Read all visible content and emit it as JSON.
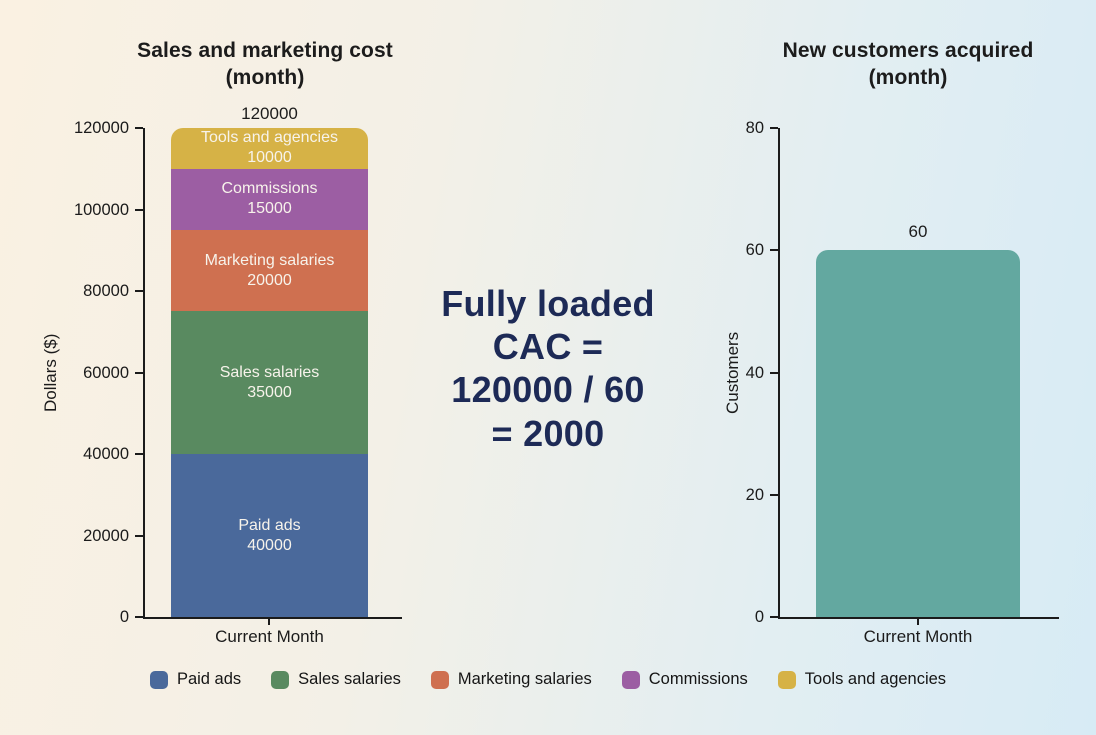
{
  "page": {
    "background_left_color": "#faf1e2",
    "background_right_color": "#d7ebf5"
  },
  "center_text": {
    "text": "Fully loaded\nCAC =\n120000 / 60\n= 2000",
    "color": "#1d2a56"
  },
  "chart_data": [
    {
      "type": "bar",
      "stacked": true,
      "title": "Sales and marketing cost\n(month)",
      "categories": [
        "Current Month"
      ],
      "series": [
        {
          "name": "Paid ads",
          "values": [
            40000
          ],
          "color": "#4a699b"
        },
        {
          "name": "Sales salaries",
          "values": [
            35000
          ],
          "color": "#598a60"
        },
        {
          "name": "Marketing salaries",
          "values": [
            20000
          ],
          "color": "#cf7050"
        },
        {
          "name": "Commissions",
          "values": [
            15000
          ],
          "color": "#9c5ea3"
        },
        {
          "name": "Tools and agencies",
          "values": [
            10000
          ],
          "color": "#d6b246"
        }
      ],
      "segment_labels": true,
      "total_label": "120000",
      "xlabel": "Current Month",
      "ylabel": "Dollars ($)",
      "ylim": [
        0,
        120000
      ],
      "yticks": [
        0,
        20000,
        40000,
        60000,
        80000,
        100000,
        120000
      ],
      "grid": false
    },
    {
      "type": "bar",
      "stacked": false,
      "title": "New customers acquired\n(month)",
      "categories": [
        "Current Month"
      ],
      "series": [
        {
          "name": "Customers",
          "values": [
            60
          ],
          "color": "#63a8a0"
        }
      ],
      "segment_labels": false,
      "total_label": "60",
      "xlabel": "Current Month",
      "ylabel": "Customers",
      "ylim": [
        0,
        80
      ],
      "yticks": [
        0,
        20,
        40,
        60,
        80
      ],
      "grid": false
    }
  ],
  "legend": {
    "items": [
      {
        "label": "Paid ads",
        "color": "#4a699b"
      },
      {
        "label": "Sales salaries",
        "color": "#598a60"
      },
      {
        "label": "Marketing salaries",
        "color": "#cf7050"
      },
      {
        "label": "Commissions",
        "color": "#9c5ea3"
      },
      {
        "label": "Tools and agencies",
        "color": "#d6b246"
      }
    ]
  }
}
